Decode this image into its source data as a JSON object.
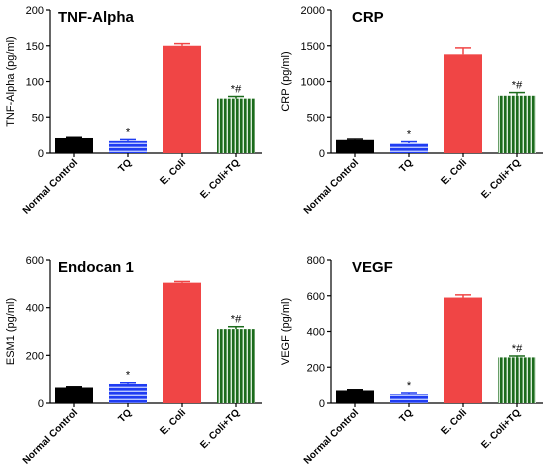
{
  "colors": {
    "normal_control": "#000000",
    "tq": "#1f3cf2",
    "ecoli": "#f04545",
    "ecoli_tq": "#1c6b1c"
  },
  "chart_data": [
    {
      "type": "bar",
      "title": "TNF-Alpha",
      "ylabel": "TNF-Alpha (pg/ml)",
      "ylim": [
        0,
        200
      ],
      "yticks": [
        "0",
        "50",
        "100",
        "150",
        "200"
      ],
      "categories": [
        "Normal Control",
        "TQ",
        "E. Coli",
        "E. Coli+TQ"
      ],
      "values": [
        21,
        17,
        150,
        76
      ],
      "errors": [
        1,
        2,
        3,
        3
      ],
      "annotations": [
        "",
        "*",
        "",
        "*#"
      ],
      "grid": false
    },
    {
      "type": "bar",
      "title": "CRP",
      "ylabel": "CRP (pg/ml)",
      "ylim": [
        0,
        2000
      ],
      "yticks": [
        "0",
        "500",
        "1000",
        "1500",
        "2000"
      ],
      "categories": [
        "Normal Control",
        "TQ",
        "E. Coli",
        "E. Coli+TQ"
      ],
      "values": [
        185,
        140,
        1380,
        800
      ],
      "errors": [
        10,
        20,
        90,
        45
      ],
      "annotations": [
        "",
        "*",
        "",
        "*#"
      ],
      "grid": false
    },
    {
      "type": "bar",
      "title": "Endocan 1",
      "ylabel": "ESM1 (pg/ml)",
      "ylim": [
        0,
        600
      ],
      "yticks": [
        "0",
        "200",
        "400",
        "600"
      ],
      "categories": [
        "Normal Control",
        "TQ",
        "E. Coli",
        "E. Coli+TQ"
      ],
      "values": [
        65,
        80,
        505,
        310
      ],
      "errors": [
        3,
        5,
        5,
        10
      ],
      "annotations": [
        "",
        "*",
        "",
        "*#"
      ],
      "grid": false
    },
    {
      "type": "bar",
      "title": "VEGF",
      "ylabel": "VEGF (pg/ml)",
      "ylim": [
        0,
        800
      ],
      "yticks": [
        "0",
        "200",
        "400",
        "600",
        "800"
      ],
      "categories": [
        "Normal Control",
        "TQ",
        "E. Coli",
        "E. Coli+TQ"
      ],
      "values": [
        70,
        50,
        590,
        255
      ],
      "errors": [
        4,
        6,
        15,
        8
      ],
      "annotations": [
        "",
        "*",
        "",
        "*#"
      ],
      "grid": false
    }
  ]
}
